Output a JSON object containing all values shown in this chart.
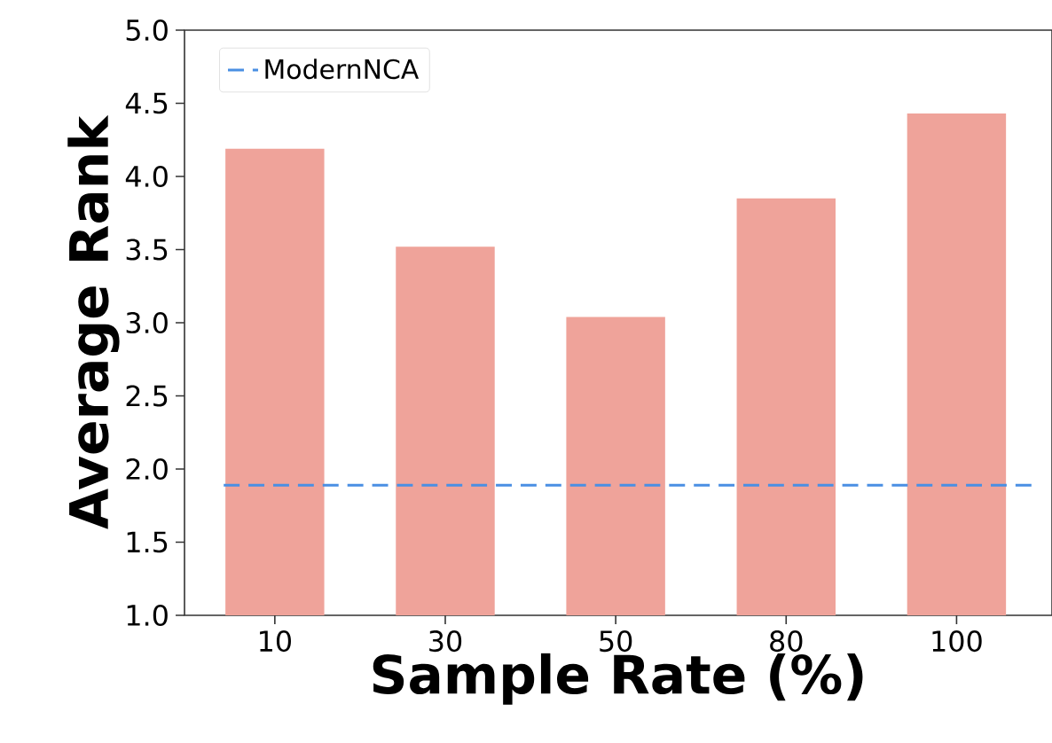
{
  "chart_data": {
    "type": "bar",
    "xlabel": "Sample Rate (%)",
    "ylabel": "Average Rank",
    "categories": [
      "10",
      "30",
      "50",
      "80",
      "100"
    ],
    "values": [
      4.19,
      3.52,
      3.04,
      3.85,
      4.43
    ],
    "color": "#efa39a",
    "ylim": [
      1.0,
      5.0
    ],
    "yticks": [
      {
        "value": 1.0,
        "label": "1.0"
      },
      {
        "value": 1.5,
        "label": "1.5"
      },
      {
        "value": 2.0,
        "label": "2.0"
      },
      {
        "value": 2.5,
        "label": "2.5"
      },
      {
        "value": 3.0,
        "label": "3.0"
      },
      {
        "value": 3.5,
        "label": "3.5"
      },
      {
        "value": 4.0,
        "label": "4.0"
      },
      {
        "value": 4.5,
        "label": "4.5"
      },
      {
        "value": 5.0,
        "label": "5.0"
      }
    ],
    "ref_lines": [
      {
        "axis": "y",
        "value": 1.89,
        "label": "ModernNCA",
        "color": "#4a8fe3",
        "line_style": "dashed"
      }
    ],
    "legend": "top left",
    "grid": false
  }
}
